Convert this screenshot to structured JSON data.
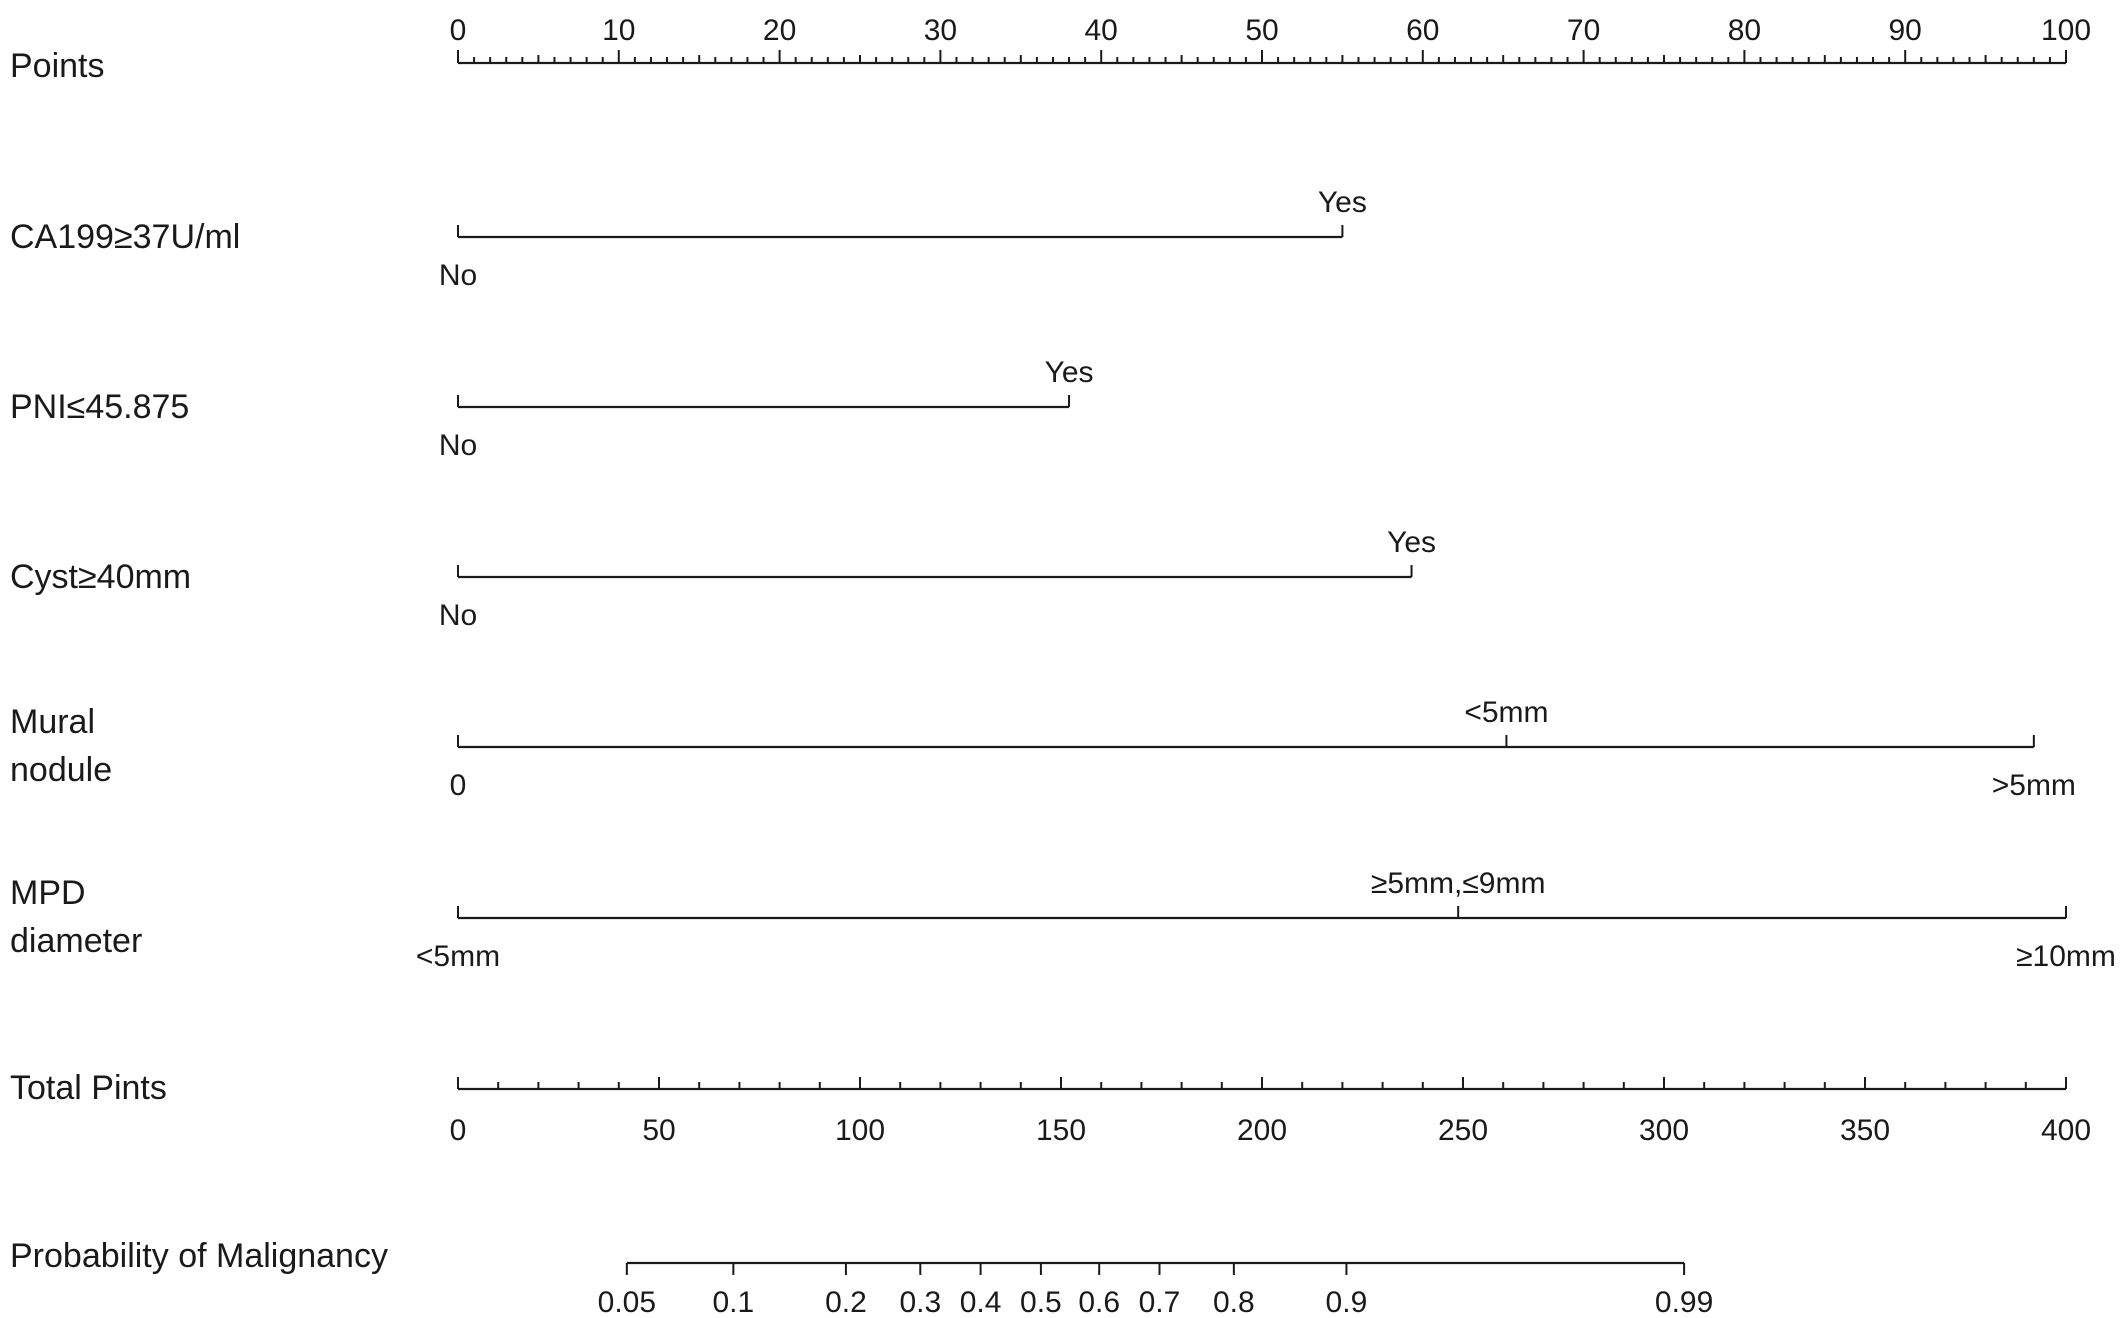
{
  "chart_data": {
    "type": "nomogram",
    "points_axis": {
      "label": "Points",
      "range": [
        0,
        100
      ],
      "major_ticks": [
        0,
        10,
        20,
        30,
        40,
        50,
        60,
        70,
        80,
        90,
        100
      ],
      "tick_labels": [
        "0",
        "10",
        "20",
        "30",
        "40",
        "50",
        "60",
        "70",
        "80",
        "90",
        "100"
      ]
    },
    "predictors": [
      {
        "name": "CA199≥37U/ml",
        "levels": [
          {
            "label": "No",
            "points": 0,
            "side": "below"
          },
          {
            "label": "Yes",
            "points": 55,
            "side": "above"
          }
        ]
      },
      {
        "name": "PNI≤45.875",
        "levels": [
          {
            "label": "No",
            "points": 0,
            "side": "below"
          },
          {
            "label": "Yes",
            "points": 38,
            "side": "above"
          }
        ]
      },
      {
        "name": "Cyst≥40mm",
        "levels": [
          {
            "label": "No",
            "points": 0,
            "side": "below"
          },
          {
            "label": "Yes",
            "points": 59.3,
            "side": "above"
          }
        ]
      },
      {
        "name_lines": [
          "Mural",
          "nodule"
        ],
        "levels": [
          {
            "label": "0",
            "points": 0,
            "side": "below"
          },
          {
            "label": "<5mm",
            "points": 65.2,
            "side": "above"
          },
          {
            "label": ">5mm",
            "points": 98,
            "side": "below"
          }
        ]
      },
      {
        "name_lines": [
          "MPD",
          "diameter"
        ],
        "levels": [
          {
            "label": "<5mm",
            "points": 0,
            "side": "below"
          },
          {
            "label": "≥5mm,≤9mm",
            "points": 62.2,
            "side": "above"
          },
          {
            "label": "≥10mm",
            "points": 100,
            "side": "below"
          }
        ]
      }
    ],
    "total_points_axis": {
      "label": "Total Pints",
      "range": [
        0,
        400
      ],
      "major_ticks": [
        0,
        50,
        100,
        150,
        200,
        250,
        300,
        350,
        400
      ],
      "tick_labels": [
        "0",
        "50",
        "100",
        "150",
        "200",
        "250",
        "300",
        "350",
        "400"
      ]
    },
    "probability_axis": {
      "label": "Probability of Malignancy",
      "ticks": [
        {
          "label": "0.05",
          "total_points": 42
        },
        {
          "label": "0.1",
          "total_points": 68.5
        },
        {
          "label": "0.2",
          "total_points": 96.5
        },
        {
          "label": "0.3",
          "total_points": 115
        },
        {
          "label": "0.4",
          "total_points": 130
        },
        {
          "label": "0.5",
          "total_points": 145
        },
        {
          "label": "0.6",
          "total_points": 159.5
        },
        {
          "label": "0.7",
          "total_points": 174.5
        },
        {
          "label": "0.8",
          "total_points": 193
        },
        {
          "label": "0.9",
          "total_points": 221
        },
        {
          "label": "0.99",
          "total_points": 305
        }
      ]
    }
  }
}
